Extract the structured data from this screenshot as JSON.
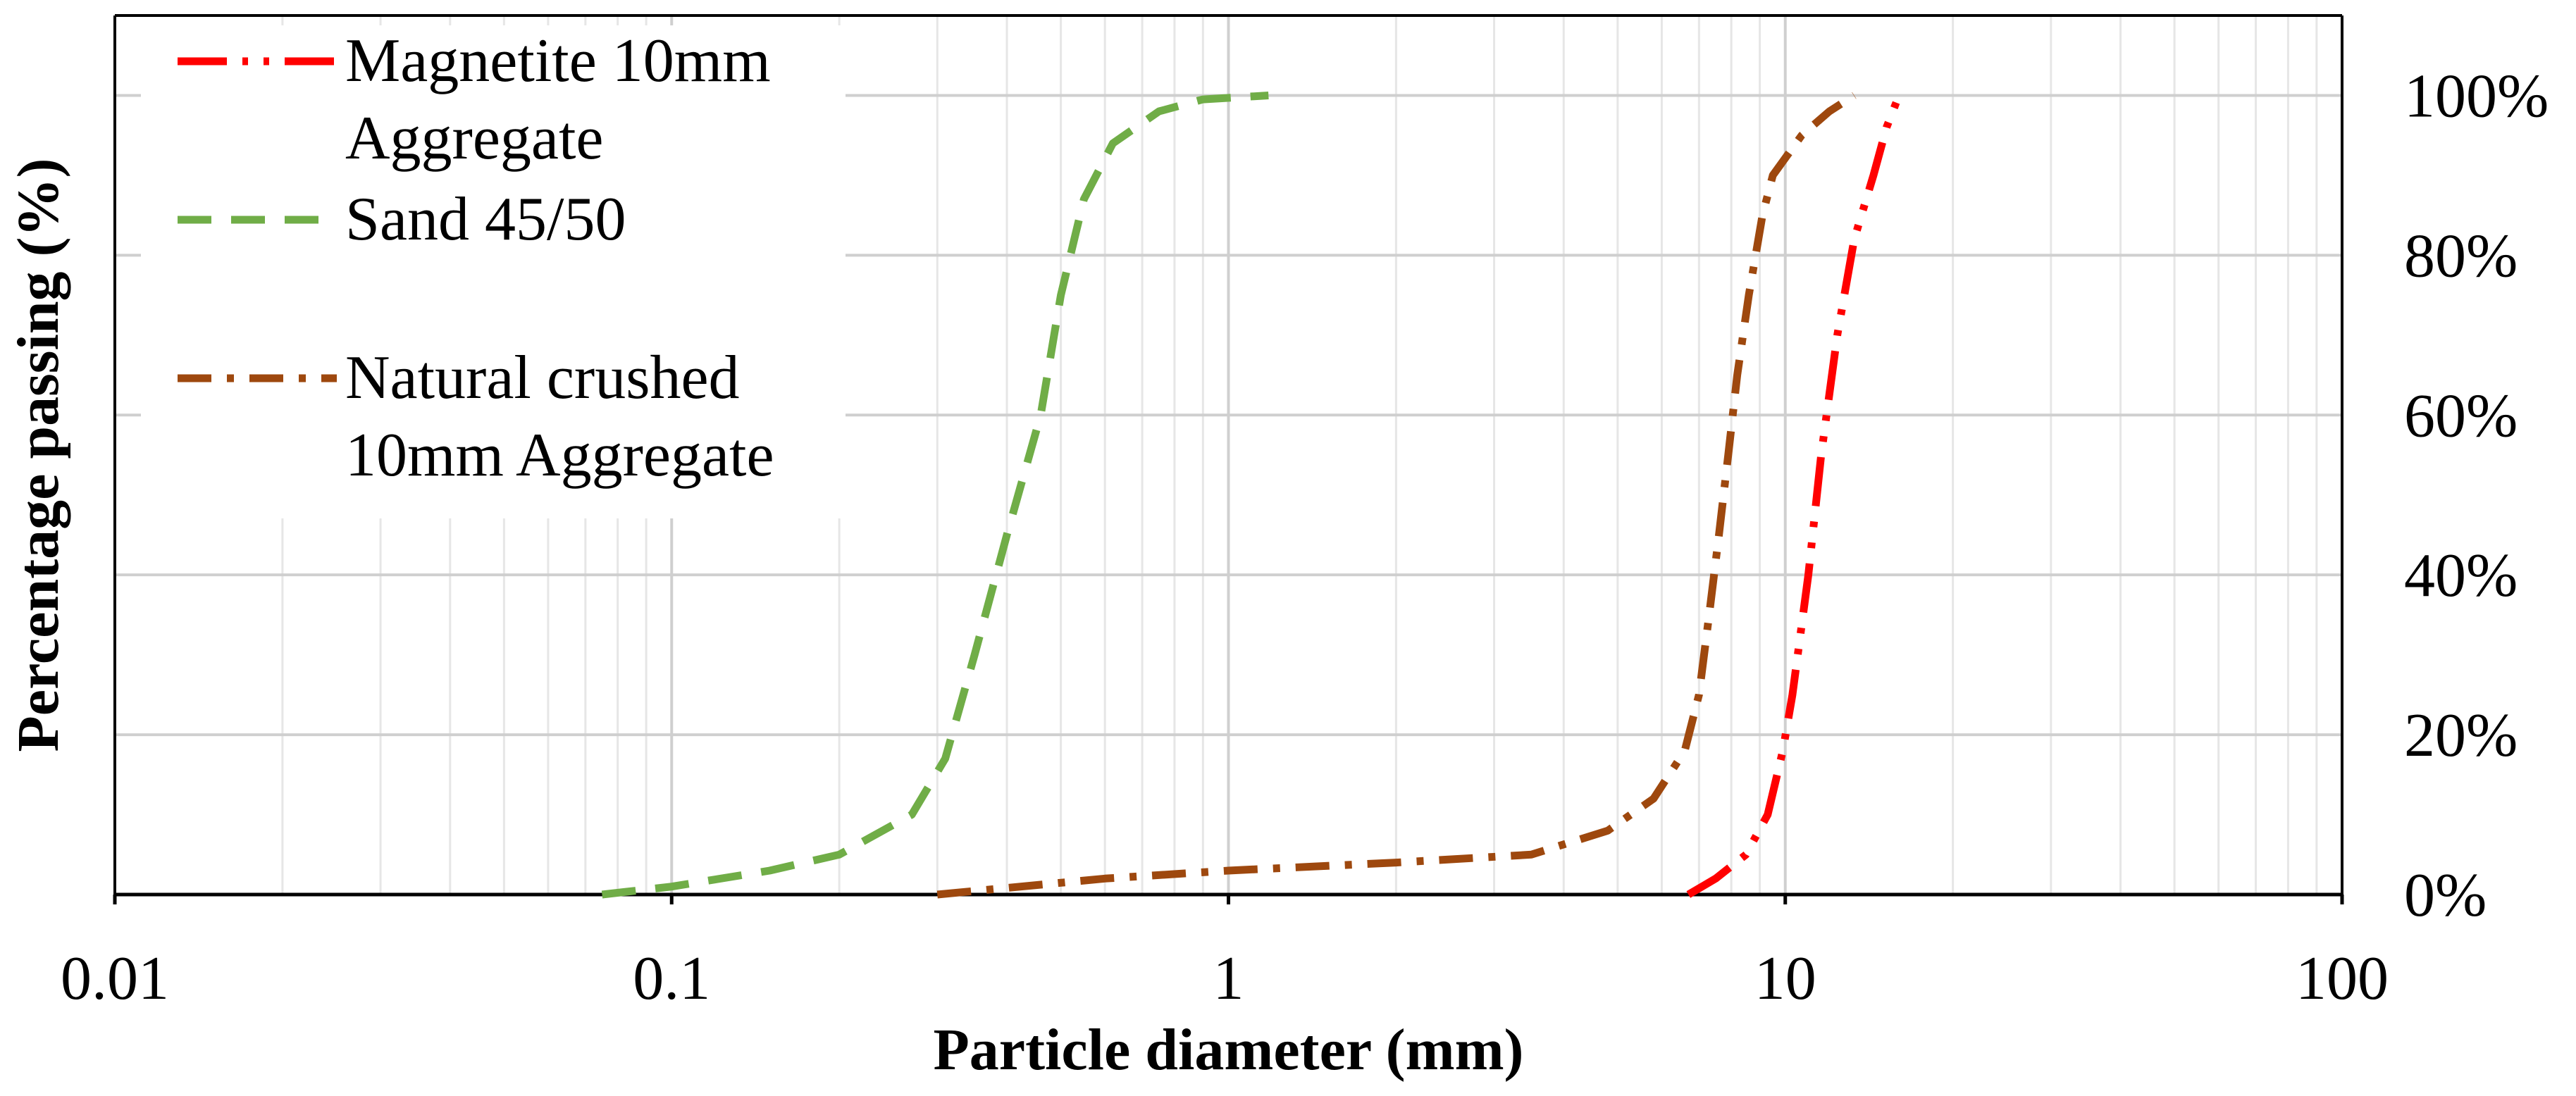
{
  "chart_data": {
    "type": "line",
    "xscale": "log",
    "xlabel": "Particle diameter (mm)",
    "ylabel": "Percentage passing (%)",
    "xlim": [
      0.01,
      100
    ],
    "ylim": [
      0,
      110
    ],
    "x_ticks": [
      0.01,
      0.1,
      1,
      10,
      100
    ],
    "x_tick_labels": [
      "0.01",
      "0.1",
      "1",
      "10",
      "100"
    ],
    "y_ticks": [
      0,
      20,
      40,
      60,
      80,
      100
    ],
    "y_tick_labels": [
      "0%",
      "20%",
      "40%",
      "60%",
      "80%",
      "100%"
    ],
    "y_tick_side": "right",
    "grid": true,
    "legend_position": "top-left",
    "series": [
      {
        "name": "Magnetite 10mm Aggregate",
        "legend_lines": [
          "Magnetite 10mm",
          "Aggregate"
        ],
        "color": "#FF0000",
        "dash": "long-dash-dot-dot",
        "points": [
          [
            6.7,
            0
          ],
          [
            7.5,
            2
          ],
          [
            8.5,
            5
          ],
          [
            9.3,
            10
          ],
          [
            9.9,
            18
          ],
          [
            10.3,
            25
          ],
          [
            11.0,
            40
          ],
          [
            11.6,
            55
          ],
          [
            12.4,
            70
          ],
          [
            13.3,
            82
          ],
          [
            14.4,
            90
          ],
          [
            15.2,
            96
          ],
          [
            16.0,
            100
          ]
        ]
      },
      {
        "name": "Sand 45/50",
        "legend_lines": [
          "Sand 45/50"
        ],
        "color": "#70AD47",
        "dash": "dash",
        "points": [
          [
            0.075,
            0
          ],
          [
            0.1,
            1
          ],
          [
            0.15,
            3
          ],
          [
            0.2,
            5
          ],
          [
            0.27,
            10
          ],
          [
            0.31,
            17
          ],
          [
            0.35,
            30
          ],
          [
            0.4,
            45
          ],
          [
            0.46,
            60
          ],
          [
            0.5,
            75
          ],
          [
            0.55,
            87
          ],
          [
            0.62,
            94
          ],
          [
            0.75,
            98
          ],
          [
            0.9,
            99.5
          ],
          [
            1.18,
            100
          ]
        ]
      },
      {
        "name": "Natural crushed 10mm Aggregate",
        "legend_lines": [
          "Natural crushed",
          "10mm Aggregate"
        ],
        "color": "#9E480E",
        "dash": "dash-dot",
        "points": [
          [
            0.3,
            0
          ],
          [
            0.6,
            2
          ],
          [
            1.0,
            3
          ],
          [
            2.0,
            4
          ],
          [
            3.5,
            5
          ],
          [
            4.8,
            8
          ],
          [
            5.8,
            12
          ],
          [
            6.6,
            18
          ],
          [
            7.0,
            25
          ],
          [
            7.3,
            35
          ],
          [
            7.6,
            45
          ],
          [
            7.9,
            55
          ],
          [
            8.2,
            65
          ],
          [
            8.6,
            75
          ],
          [
            9.1,
            85
          ],
          [
            9.5,
            90
          ],
          [
            10.7,
            95
          ],
          [
            12.0,
            98
          ],
          [
            13.3,
            100
          ]
        ]
      }
    ]
  }
}
